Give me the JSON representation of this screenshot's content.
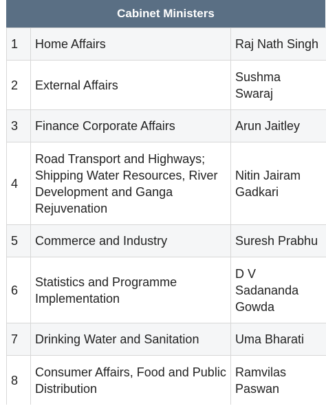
{
  "title": "Cabinet Ministers",
  "rows": [
    {
      "num": "1",
      "portfolio": "Home Affairs",
      "minister": "Raj Nath Singh"
    },
    {
      "num": "2",
      "portfolio": "External Affairs",
      "minister": "Sushma Swaraj"
    },
    {
      "num": "3",
      "portfolio": "Finance Corporate Affairs",
      "minister": "Arun Jaitley"
    },
    {
      "num": "4",
      "portfolio": "Road Transport and Highways; Shipping Water Resources, River Development and Ganga Rejuvenation",
      "minister": "Nitin Jairam Gadkari"
    },
    {
      "num": "5",
      "portfolio": "Commerce and Industry",
      "minister": "Suresh Prabhu"
    },
    {
      "num": "6",
      "portfolio": "Statistics and Programme Implementation",
      "minister": "D V Sadananda Gowda"
    },
    {
      "num": "7",
      "portfolio": "Drinking Water and Sanitation",
      "minister": "Uma Bharati"
    },
    {
      "num": "8",
      "portfolio": "Consumer Affairs, Food and Public Distribution",
      "minister": "Ramvilas Paswan"
    }
  ]
}
